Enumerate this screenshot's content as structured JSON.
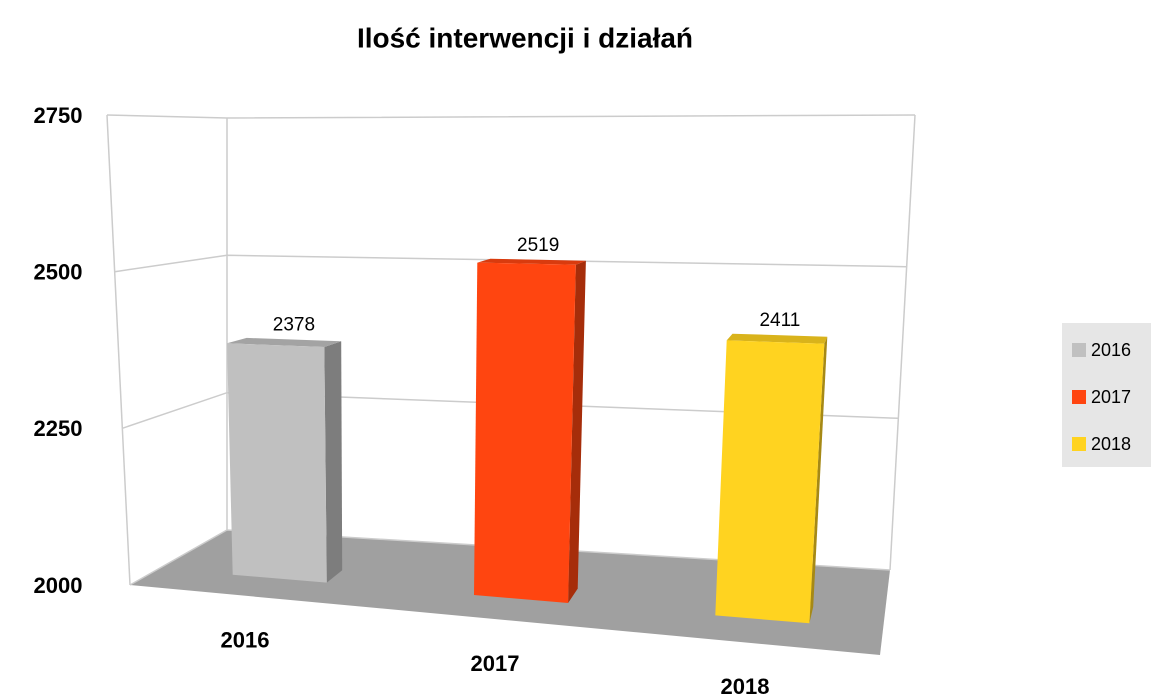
{
  "chart_data": {
    "type": "bar3d",
    "title": "Ilość interwencji i działań",
    "categories": [
      "2016",
      "2017",
      "2018"
    ],
    "values": [
      2378,
      2519,
      2411
    ],
    "colors": [
      "#c0c0c0",
      "#ff4510",
      "#ffd320"
    ],
    "ylim": [
      2000,
      2750
    ],
    "yticks": [
      2000,
      2250,
      2500,
      2750
    ],
    "grid": true,
    "legend": "right"
  }
}
